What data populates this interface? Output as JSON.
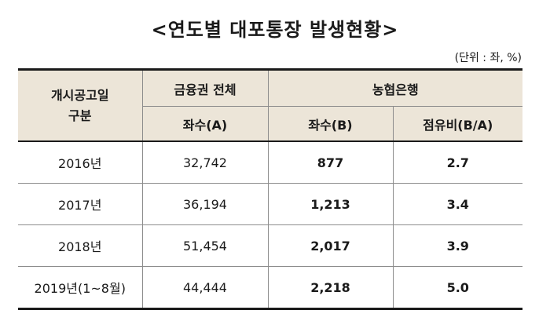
{
  "title": "<연도별 대포통장 발생현황>",
  "unit": "(단위 : 좌, %)",
  "header": {
    "corner_line1": "개시공고일",
    "corner_line2": "구분",
    "group_all": "금융권 전체",
    "group_nh": "농협은행",
    "col_a": "좌수(A)",
    "col_b": "좌수(B)",
    "col_ratio": "점유비(B/A)"
  },
  "rows": [
    {
      "year": "2016년",
      "a": "32,742",
      "b": "877",
      "ratio": "2.7"
    },
    {
      "year": "2017년",
      "a": "36,194",
      "b": "1,213",
      "ratio": "3.4"
    },
    {
      "year": "2018년",
      "a": "51,454",
      "b": "2,017",
      "ratio": "3.9"
    },
    {
      "year": "2019년(1~8월)",
      "a": "44,444",
      "b": "2,218",
      "ratio": "5.0"
    }
  ]
}
